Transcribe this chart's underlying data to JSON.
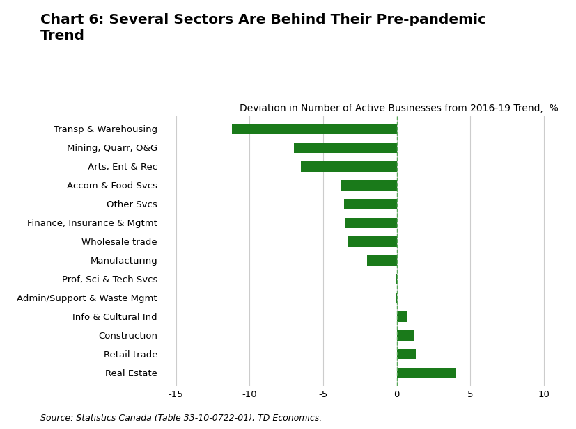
{
  "title": "Chart 6: Several Sectors Are Behind Their Pre-pandemic\nTrend",
  "subtitle": "Deviation in Number of Active Businesses from 2016-19 Trend,  %",
  "source": "Source: Statistics Canada (Table 33-10-0722-01), TD Economics.",
  "categories": [
    "Transp & Warehousing",
    "Mining, Quarr, O&G",
    "Arts, Ent & Rec",
    "Accom & Food Svcs",
    "Other Svcs",
    "Finance, Insurance & Mgtmt",
    "Wholesale trade",
    "Manufacturing",
    "Prof, Sci & Tech Svcs",
    "Admin/Support & Waste Mgmt",
    "Info & Cultural Ind",
    "Construction",
    "Retail trade",
    "Real Estate"
  ],
  "values": [
    -11.2,
    -7.0,
    -6.5,
    -3.8,
    -3.6,
    -3.5,
    -3.3,
    -2.0,
    -0.1,
    -0.05,
    0.7,
    1.2,
    1.3,
    4.0
  ],
  "bar_color": "#1a7a1a",
  "dashed_line_color": "#5aaa5a",
  "xlim": [
    -16,
    11
  ],
  "xticks": [
    -15,
    -10,
    -5,
    0,
    5,
    10
  ],
  "grid_color": "#cccccc",
  "background_color": "#ffffff",
  "title_fontsize": 14.5,
  "subtitle_fontsize": 10,
  "label_fontsize": 9.5,
  "source_fontsize": 9,
  "bar_height": 0.55
}
